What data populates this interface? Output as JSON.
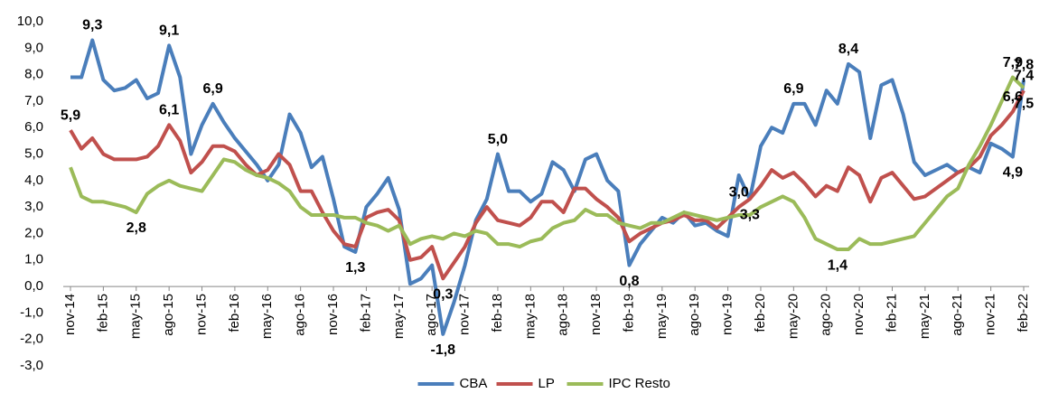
{
  "chart_data": {
    "type": "line",
    "categories": [
      "nov-14",
      null,
      null,
      "feb-15",
      null,
      null,
      "may-15",
      null,
      null,
      "ago-15",
      null,
      null,
      "nov-15",
      null,
      null,
      "feb-16",
      null,
      null,
      "may-16",
      null,
      null,
      "ago-16",
      null,
      null,
      "nov-16",
      null,
      null,
      "feb-17",
      null,
      null,
      "may-17",
      null,
      null,
      "ago-17",
      null,
      null,
      "nov-17",
      null,
      null,
      "feb-18",
      null,
      null,
      "may-18",
      null,
      null,
      "ago-18",
      null,
      null,
      "nov-18",
      null,
      null,
      "feb-19",
      null,
      null,
      "may-19",
      null,
      null,
      "ago-19",
      null,
      null,
      "nov-19",
      null,
      null,
      "feb-20",
      null,
      null,
      "may-20",
      null,
      null,
      "ago-20",
      null,
      null,
      "nov-20",
      null,
      null,
      "feb-21",
      null,
      null,
      "may-21",
      null,
      null,
      "ago-21",
      null,
      null,
      "nov-21",
      null,
      null,
      "feb-22"
    ],
    "ylim": [
      -3,
      10
    ],
    "yticks": [
      {
        "value": -3,
        "label": "-3,0"
      },
      {
        "value": -2,
        "label": "-2,0"
      },
      {
        "value": -1,
        "label": "-1,0"
      },
      {
        "value": 0,
        "label": "0,0"
      },
      {
        "value": 1,
        "label": "1,0"
      },
      {
        "value": 2,
        "label": "2,0"
      },
      {
        "value": 3,
        "label": "3,0"
      },
      {
        "value": 4,
        "label": "4,0"
      },
      {
        "value": 5,
        "label": "5,0"
      },
      {
        "value": 6,
        "label": "6,0"
      },
      {
        "value": 7,
        "label": "7,0"
      },
      {
        "value": 8,
        "label": "8,0"
      },
      {
        "value": 9,
        "label": "9,0"
      },
      {
        "value": 10,
        "label": "10,0"
      }
    ],
    "legend": "bottom",
    "series": [
      {
        "name": "CBA",
        "color": "#4a7ebb",
        "values": [
          7.9,
          7.9,
          9.3,
          7.8,
          7.4,
          7.5,
          7.8,
          7.1,
          7.3,
          9.1,
          7.9,
          5.0,
          6.1,
          6.9,
          6.2,
          5.6,
          5.1,
          4.6,
          4.0,
          4.6,
          6.5,
          5.8,
          4.5,
          4.9,
          3.3,
          1.5,
          1.3,
          3.0,
          3.5,
          4.1,
          2.9,
          0.1,
          0.3,
          0.8,
          -1.8,
          -0.6,
          0.8,
          2.5,
          3.3,
          5.0,
          3.6,
          3.6,
          3.2,
          3.5,
          4.7,
          4.4,
          3.6,
          4.8,
          5.0,
          4.0,
          3.6,
          0.8,
          1.6,
          2.1,
          2.6,
          2.4,
          2.8,
          2.3,
          2.4,
          2.1,
          1.9,
          4.2,
          3.3,
          5.3,
          6.0,
          5.8,
          6.9,
          6.9,
          6.1,
          7.4,
          6.9,
          8.4,
          8.1,
          5.6,
          7.6,
          7.8,
          6.5,
          4.7,
          4.2,
          4.4,
          4.6,
          4.3,
          4.5,
          4.3,
          5.4,
          5.2,
          4.9,
          7.8
        ],
        "value_labels": [
          null,
          null,
          "9,3",
          null,
          null,
          null,
          null,
          null,
          null,
          "9,1",
          null,
          null,
          null,
          "6,9",
          null,
          null,
          null,
          null,
          null,
          null,
          null,
          null,
          null,
          null,
          null,
          null,
          "1,3",
          null,
          null,
          null,
          null,
          null,
          null,
          null,
          "-1,8",
          null,
          null,
          null,
          null,
          "5,0",
          null,
          null,
          null,
          null,
          null,
          null,
          null,
          null,
          null,
          null,
          null,
          "0,8",
          null,
          null,
          null,
          null,
          null,
          null,
          null,
          null,
          null,
          null,
          "3,3",
          null,
          null,
          null,
          "6,9",
          null,
          null,
          null,
          null,
          "8,4",
          null,
          null,
          null,
          null,
          null,
          null,
          null,
          null,
          null,
          null,
          null,
          null,
          null,
          null,
          "4,9",
          "7,8"
        ]
      },
      {
        "name": "LP",
        "color": "#c0504d",
        "values": [
          5.9,
          5.2,
          5.6,
          5.0,
          4.8,
          4.8,
          4.8,
          4.9,
          5.3,
          6.1,
          5.5,
          4.3,
          4.7,
          5.3,
          5.3,
          5.1,
          4.6,
          4.2,
          4.4,
          5.0,
          4.6,
          3.6,
          3.6,
          2.8,
          2.1,
          1.6,
          1.5,
          2.6,
          2.8,
          2.9,
          2.5,
          1.0,
          1.1,
          1.5,
          0.3,
          0.9,
          1.5,
          2.4,
          3.0,
          2.5,
          2.4,
          2.3,
          2.6,
          3.2,
          3.2,
          2.8,
          3.7,
          3.7,
          3.3,
          3.0,
          2.6,
          1.7,
          2.0,
          2.2,
          2.4,
          2.5,
          2.7,
          2.5,
          2.5,
          2.2,
          2.6,
          3.0,
          3.3,
          3.8,
          4.4,
          4.1,
          4.3,
          3.9,
          3.4,
          3.8,
          3.6,
          4.5,
          4.2,
          3.2,
          4.1,
          4.3,
          3.8,
          3.3,
          3.4,
          3.7,
          4.0,
          4.3,
          4.5,
          4.9,
          5.7,
          6.1,
          6.6,
          7.4
        ],
        "value_labels": [
          "5,9",
          null,
          null,
          null,
          null,
          null,
          null,
          null,
          null,
          "6,1",
          null,
          null,
          null,
          null,
          null,
          null,
          null,
          null,
          null,
          null,
          null,
          null,
          null,
          null,
          null,
          null,
          null,
          null,
          null,
          null,
          null,
          null,
          null,
          null,
          "0,3",
          null,
          null,
          null,
          null,
          null,
          null,
          null,
          null,
          null,
          null,
          null,
          null,
          null,
          null,
          null,
          null,
          null,
          null,
          null,
          null,
          null,
          null,
          null,
          null,
          null,
          null,
          "3,0",
          null,
          null,
          null,
          null,
          null,
          null,
          null,
          null,
          null,
          null,
          null,
          null,
          null,
          null,
          null,
          null,
          null,
          null,
          null,
          null,
          null,
          null,
          null,
          null,
          "6,6",
          "7,4"
        ]
      },
      {
        "name": "IPC Resto",
        "color": "#9bbb59",
        "values": [
          4.5,
          3.4,
          3.2,
          3.2,
          3.1,
          3.0,
          2.8,
          3.5,
          3.8,
          4.0,
          3.8,
          3.7,
          3.6,
          4.2,
          4.8,
          4.7,
          4.4,
          4.2,
          4.1,
          3.9,
          3.6,
          3.0,
          2.7,
          2.7,
          2.7,
          2.6,
          2.6,
          2.4,
          2.3,
          2.1,
          2.3,
          1.6,
          1.8,
          1.9,
          1.8,
          2.0,
          1.9,
          2.1,
          2.0,
          1.6,
          1.6,
          1.5,
          1.7,
          1.8,
          2.2,
          2.4,
          2.5,
          2.9,
          2.7,
          2.7,
          2.4,
          2.3,
          2.2,
          2.4,
          2.4,
          2.6,
          2.8,
          2.7,
          2.6,
          2.5,
          2.6,
          2.7,
          2.7,
          3.0,
          3.2,
          3.4,
          3.2,
          2.6,
          1.8,
          1.6,
          1.4,
          1.4,
          1.8,
          1.6,
          1.6,
          1.7,
          1.8,
          1.9,
          2.4,
          2.9,
          3.4,
          3.7,
          4.6,
          5.3,
          6.1,
          7.0,
          7.9,
          7.5
        ],
        "value_labels": [
          null,
          null,
          null,
          null,
          null,
          null,
          "2,8",
          null,
          null,
          null,
          null,
          null,
          null,
          null,
          null,
          null,
          null,
          null,
          null,
          null,
          null,
          null,
          null,
          null,
          null,
          null,
          null,
          null,
          null,
          null,
          null,
          null,
          null,
          null,
          null,
          null,
          null,
          null,
          null,
          null,
          null,
          null,
          null,
          null,
          null,
          null,
          null,
          null,
          null,
          null,
          null,
          null,
          null,
          null,
          null,
          null,
          null,
          null,
          null,
          null,
          null,
          null,
          null,
          null,
          null,
          null,
          null,
          null,
          null,
          null,
          "1,4",
          null,
          null,
          null,
          null,
          null,
          null,
          null,
          null,
          null,
          null,
          null,
          null,
          null,
          null,
          null,
          "7,9",
          "7,5"
        ]
      }
    ]
  }
}
